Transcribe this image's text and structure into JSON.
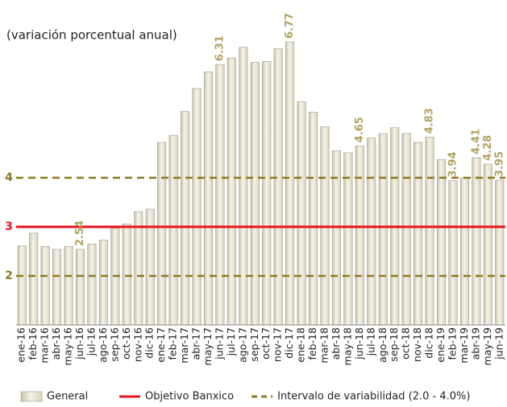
{
  "chart_data": {
    "type": "bar",
    "subtitle": "(variación porcentual anual)",
    "categories": [
      "ene-16",
      "feb-16",
      "mar-16",
      "abr-16",
      "may-16",
      "jun-16",
      "jul-16",
      "ago-16",
      "sep-16",
      "oct-16",
      "nov-16",
      "dic-16",
      "ene-17",
      "feb-17",
      "mar-17",
      "abr-17",
      "may-17",
      "jun-17",
      "jul-17",
      "ago-17",
      "sep-17",
      "oct-17",
      "nov-17",
      "dic-17",
      "ene-18",
      "feb-18",
      "mar-18",
      "abr-18",
      "may-18",
      "jun-18",
      "jul-18",
      "ago-18",
      "sep-18",
      "oct-18",
      "nov-18",
      "dic-18",
      "ene-19",
      "feb-19",
      "mar-19",
      "abr-19",
      "may-19",
      "jun-19"
    ],
    "series": [
      {
        "name": "General",
        "color": "#e4e0cc",
        "values": [
          2.61,
          2.87,
          2.6,
          2.54,
          2.6,
          2.54,
          2.65,
          2.73,
          2.97,
          3.06,
          3.31,
          3.36,
          4.72,
          4.86,
          5.35,
          5.82,
          6.16,
          6.31,
          6.44,
          6.66,
          6.35,
          6.37,
          6.63,
          6.77,
          5.55,
          5.34,
          5.04,
          4.55,
          4.51,
          4.65,
          4.81,
          4.9,
          5.02,
          4.9,
          4.72,
          4.83,
          4.37,
          3.94,
          4.0,
          4.41,
          4.28,
          3.95
        ],
        "value_labels": [
          null,
          null,
          null,
          null,
          null,
          "2.54",
          null,
          null,
          null,
          null,
          null,
          null,
          null,
          null,
          null,
          null,
          null,
          "6.31",
          null,
          null,
          null,
          null,
          null,
          "6.77",
          null,
          null,
          null,
          null,
          null,
          "4.65",
          null,
          null,
          null,
          null,
          null,
          "4.83",
          null,
          "3.94",
          null,
          "4.41",
          "4.28",
          "3.95"
        ]
      }
    ],
    "reference_lines": [
      {
        "name": "Objetivo Banxico",
        "color": "#e8141c",
        "style": "solid",
        "values": [
          3
        ]
      },
      {
        "name": "Intervalo de variabilidad (2.0 - 4.0%)",
        "color": "#8c7a22",
        "style": "dashed",
        "values": [
          2,
          4
        ]
      }
    ],
    "ylim": [
      1,
      7
    ],
    "yticks": [
      2,
      3,
      4
    ],
    "value_label_color": "#b3a462"
  }
}
